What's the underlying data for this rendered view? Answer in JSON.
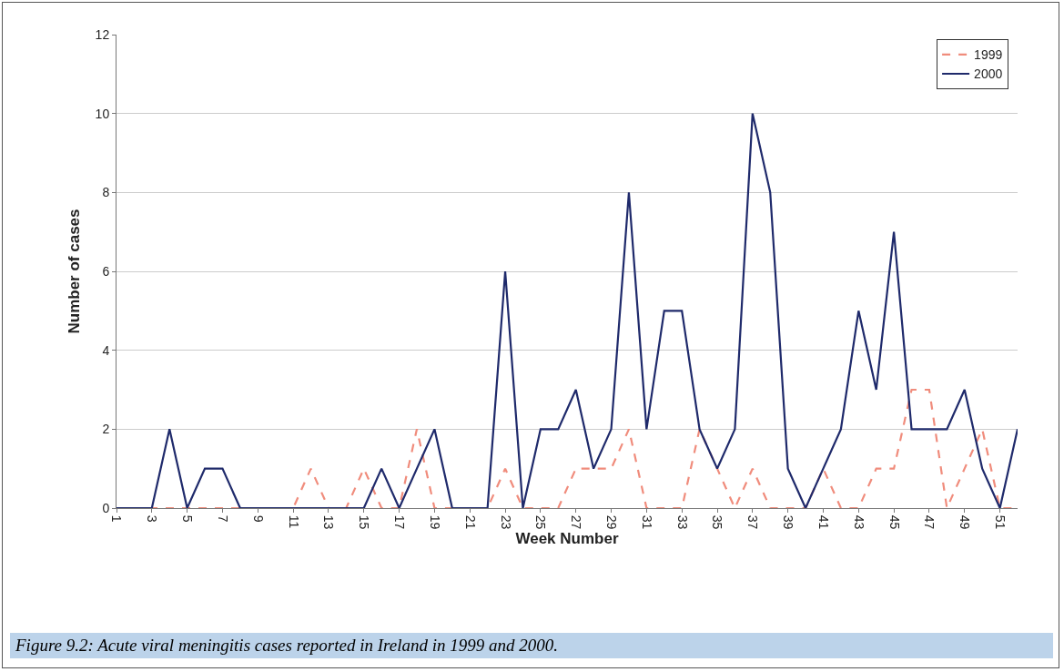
{
  "chart_data": {
    "type": "line",
    "xlabel": "Week Number",
    "ylabel": "Number of cases",
    "x": [
      1,
      2,
      3,
      4,
      5,
      6,
      7,
      8,
      9,
      10,
      11,
      12,
      13,
      14,
      15,
      16,
      17,
      18,
      19,
      20,
      21,
      22,
      23,
      24,
      25,
      26,
      27,
      28,
      29,
      30,
      31,
      32,
      33,
      34,
      35,
      36,
      37,
      38,
      39,
      40,
      41,
      42,
      43,
      44,
      45,
      46,
      47,
      48,
      49,
      50,
      51,
      52
    ],
    "series": [
      {
        "name": "1999",
        "color": "#f08c7c",
        "line_style": "dashed",
        "values": [
          0,
          0,
          0,
          0,
          0,
          0,
          0,
          0,
          0,
          0,
          0,
          1,
          0,
          0,
          1,
          0,
          0,
          2,
          0,
          0,
          0,
          0,
          1,
          0,
          0,
          0,
          1,
          1,
          1,
          2,
          0,
          0,
          0,
          2,
          1,
          0,
          1,
          0,
          0,
          0,
          1,
          0,
          0,
          1,
          1,
          3,
          3,
          0,
          1,
          2,
          0,
          0
        ]
      },
      {
        "name": "2000",
        "color": "#1f2a6b",
        "line_style": "solid",
        "values": [
          0,
          0,
          0,
          2,
          0,
          1,
          1,
          0,
          0,
          0,
          0,
          0,
          0,
          0,
          0,
          1,
          0,
          1,
          2,
          0,
          0,
          0,
          6,
          0,
          2,
          2,
          3,
          1,
          2,
          8,
          2,
          5,
          5,
          2,
          1,
          2,
          10,
          8,
          1,
          0,
          1,
          2,
          5,
          3,
          7,
          2,
          2,
          2,
          3,
          1,
          0,
          2
        ]
      }
    ],
    "xlim": [
      1,
      52
    ],
    "xticks": [
      1,
      3,
      5,
      7,
      9,
      11,
      13,
      15,
      17,
      19,
      21,
      23,
      25,
      27,
      29,
      31,
      33,
      35,
      37,
      39,
      41,
      43,
      45,
      47,
      49,
      51
    ],
    "ylim": [
      0,
      12
    ],
    "yticks": [
      0,
      2,
      4,
      6,
      8,
      10,
      12
    ],
    "grid": "y",
    "legend": "top right",
    "marker": "none",
    "annotations": [
      "Figure 9.2: Acute viral meningitis cases reported in Ireland in 1999 and 2000."
    ]
  }
}
